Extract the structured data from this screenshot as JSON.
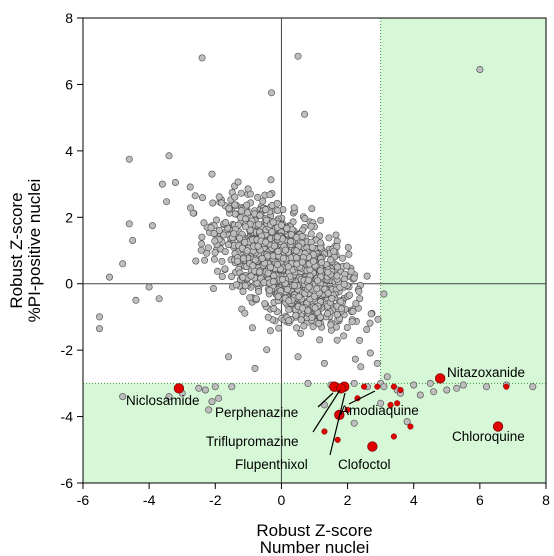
{
  "chart_data": {
    "type": "scatter",
    "xlabel": [
      "Robust Z-score",
      "Number nuclei"
    ],
    "ylabel": [
      "Robust Z-score",
      "%PI-positive nuclei"
    ],
    "xlim": [
      -6,
      8
    ],
    "ylim": [
      -6,
      8
    ],
    "xticks": [
      "-6",
      "-4",
      "-2",
      "0",
      "2",
      "4",
      "6",
      "8"
    ],
    "yticks": [
      "-6",
      "-4",
      "-2",
      "0",
      "2",
      "4",
      "6",
      "8"
    ],
    "x_threshold": 3,
    "y_threshold": -3,
    "hit_region_color": "#c8f5c8",
    "background_point_color": "#bdbdbd",
    "highlight_color": "#e00000",
    "grid": false,
    "cloud": {
      "description_center": [
        0.1,
        0.6
      ],
      "count": 1500,
      "sd": [
        0.95,
        0.85
      ],
      "correlation": -0.55
    },
    "outliers": [
      [
        -2.4,
        6.8
      ],
      [
        0.5,
        6.85
      ],
      [
        -0.3,
        5.75
      ],
      [
        0.7,
        5.1
      ],
      [
        6.0,
        6.45
      ],
      [
        -4.6,
        3.75
      ],
      [
        -3.4,
        3.85
      ],
      [
        -3.6,
        3.0
      ],
      [
        -2.1,
        3.3
      ],
      [
        -5.5,
        -1.0
      ],
      [
        -5.5,
        -1.35
      ],
      [
        -4.4,
        -0.5
      ],
      [
        -4.0,
        -0.1
      ],
      [
        -3.7,
        -0.45
      ],
      [
        -5.2,
        0.2
      ],
      [
        -4.8,
        0.6
      ],
      [
        -4.5,
        1.3
      ],
      [
        -3.9,
        1.75
      ],
      [
        -4.6,
        1.8
      ],
      [
        -1.6,
        -2.2
      ],
      [
        -0.8,
        -2.55
      ],
      [
        0.5,
        -2.2
      ],
      [
        1.3,
        -2.4
      ],
      [
        2.4,
        -2.5
      ],
      [
        2.9,
        -2.4
      ],
      [
        3.2,
        -2.8
      ],
      [
        3.0,
        -3.0
      ],
      [
        -4.8,
        -3.4
      ],
      [
        -2.5,
        -3.15
      ],
      [
        -2.0,
        -3.1
      ],
      [
        -1.5,
        -3.1
      ],
      [
        0.8,
        -3.0
      ],
      [
        1.5,
        -3.05
      ],
      [
        2.2,
        -3.0
      ],
      [
        2.6,
        -3.1
      ],
      [
        3.1,
        -3.1
      ],
      [
        3.5,
        -3.2
      ],
      [
        3.6,
        -3.3
      ],
      [
        4.0,
        -3.05
      ],
      [
        4.2,
        -3.35
      ],
      [
        4.5,
        -3.0
      ],
      [
        5.0,
        -3.2
      ],
      [
        5.5,
        -3.05
      ],
      [
        6.2,
        -3.1
      ],
      [
        6.8,
        -3.05
      ],
      [
        7.6,
        -3.1
      ],
      [
        -1.9,
        -3.45
      ],
      [
        -2.1,
        -3.55
      ],
      [
        -2.2,
        -3.8
      ],
      [
        -3.4,
        -3.4
      ],
      [
        -3.0,
        -3.3
      ],
      [
        -2.3,
        -3.2
      ],
      [
        3.8,
        -4.15
      ],
      [
        1.3,
        -3.65
      ],
      [
        2.2,
        -4.2
      ],
      [
        3.0,
        -3.6
      ],
      [
        4.6,
        -3.25
      ],
      [
        5.3,
        -3.15
      ]
    ],
    "small_hits": [
      [
        1.3,
        -4.45
      ],
      [
        1.7,
        -4.7
      ],
      [
        2.0,
        -3.8
      ],
      [
        2.3,
        -3.45
      ],
      [
        3.4,
        -3.1
      ],
      [
        3.6,
        -3.2
      ],
      [
        3.3,
        -3.65
      ],
      [
        3.5,
        -3.6
      ],
      [
        3.4,
        -4.6
      ],
      [
        3.9,
        -4.3
      ],
      [
        6.8,
        -3.1
      ],
      [
        2.9,
        -3.1
      ],
      [
        2.5,
        -3.1
      ]
    ],
    "labeled_hits": [
      {
        "name": "Nitazoxanide",
        "x": 4.8,
        "y": -2.85
      },
      {
        "name": "Niclosamide",
        "x": -3.1,
        "y": -3.15
      },
      {
        "name": "Amodiaquine",
        "x": 1.9,
        "y": -3.1
      },
      {
        "name": "Perphenazine",
        "x": 1.6,
        "y": -3.1
      },
      {
        "name": "Triflupromazine",
        "x": 1.75,
        "y": -3.95
      },
      {
        "name": "Flupenthixol",
        "x": 1.8,
        "y": -3.15
      },
      {
        "name": "Clofoctol",
        "x": 2.75,
        "y": -4.9
      },
      {
        "name": "Chloroquine",
        "x": 6.55,
        "y": -4.3
      }
    ]
  }
}
